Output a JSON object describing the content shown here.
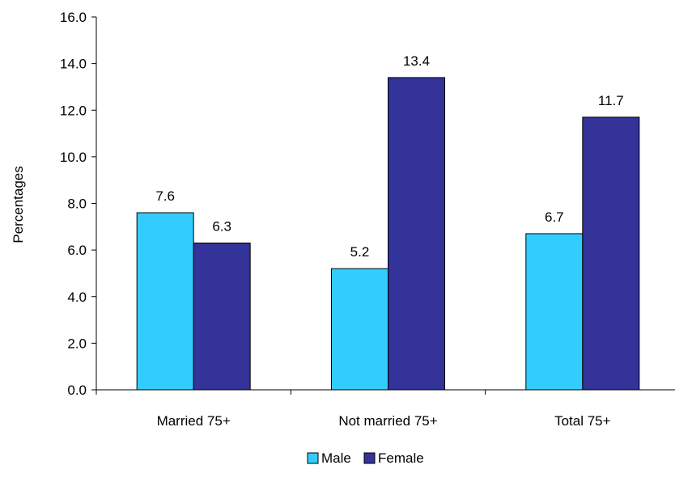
{
  "chart_data": {
    "type": "bar",
    "title": "",
    "xlabel": "",
    "ylabel": "Percentages",
    "categories": [
      "Married 75+",
      "Not married 75+",
      "Total 75+"
    ],
    "series": [
      {
        "name": "Male",
        "values": [
          7.6,
          5.2,
          6.7
        ],
        "color": "#33ccff"
      },
      {
        "name": "Female",
        "values": [
          6.3,
          13.4,
          11.7
        ],
        "color": "#333399"
      }
    ],
    "data_labels": [
      [
        "7.6",
        "5.2",
        "6.7"
      ],
      [
        "6.3",
        "13.4",
        "11.7"
      ]
    ],
    "ylim": [
      0,
      16
    ],
    "yticks": [
      "0.0",
      "2.0",
      "4.0",
      "6.0",
      "8.0",
      "10.0",
      "12.0",
      "14.0",
      "16.0"
    ],
    "grid": false,
    "legend_position": "bottom"
  }
}
